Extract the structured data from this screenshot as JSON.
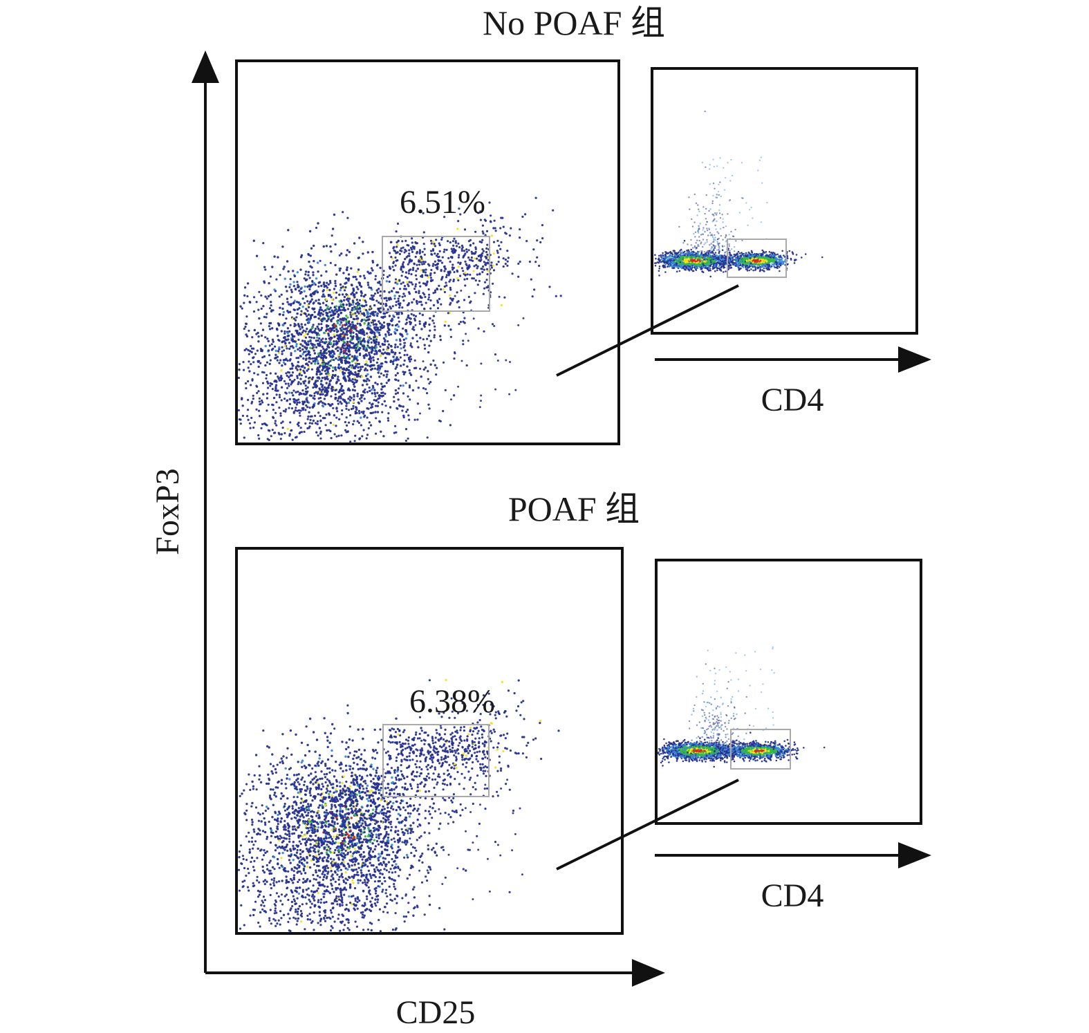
{
  "figure": {
    "y_axis_label": "FoxP3",
    "x_axis_label": "CD25",
    "inset_axis_label": "CD4"
  },
  "colors": {
    "axis": "#111111",
    "gate": "#a9a9a9",
    "density_low": "#27318f",
    "density_mid": "#3a8ad6",
    "density_mid_high": "#35b84a",
    "density_high": "#f2e21c",
    "density_peak": "#e0251b"
  },
  "chart_data": [
    {
      "type": "scatter",
      "panel": "top-main",
      "title": "No POAF 组",
      "xlabel": "CD25",
      "ylabel": "FoxP3",
      "gate_label": "6.51%",
      "gate_percent": 6.51,
      "xlim": [
        0,
        100
      ],
      "ylim": [
        0,
        100
      ],
      "population_center": [
        27,
        28
      ],
      "gate_range": {
        "x": [
          38,
          66
        ],
        "y": [
          35,
          55
        ]
      },
      "grid": false,
      "legend": "none"
    },
    {
      "type": "scatter",
      "panel": "top-inset",
      "xlabel": "CD4",
      "xlim": [
        0,
        100
      ],
      "ylim": [
        0,
        100
      ],
      "populations": [
        {
          "name": "",
          "center": [
            16,
            28
          ]
        },
        {
          "name": "",
          "center": [
            40,
            27
          ]
        }
      ],
      "gate_range": {
        "x": [
          29,
          51
        ],
        "y": [
          21,
          36
        ]
      },
      "grid": false,
      "legend": "none"
    },
    {
      "type": "scatter",
      "panel": "bottom-main",
      "title": "POAF 组",
      "xlabel": "CD25",
      "ylabel": "FoxP3",
      "gate_label": "6.38%",
      "gate_percent": 6.38,
      "xlim": [
        0,
        100
      ],
      "ylim": [
        0,
        100
      ],
      "population_center": [
        27,
        28
      ],
      "gate_range": {
        "x": [
          38,
          66
        ],
        "y": [
          35,
          55
        ]
      },
      "grid": false,
      "legend": "none"
    },
    {
      "type": "scatter",
      "panel": "bottom-inset",
      "xlabel": "CD4",
      "xlim": [
        0,
        100
      ],
      "ylim": [
        0,
        100
      ],
      "populations": [
        {
          "name": "",
          "center": [
            17,
            28
          ]
        },
        {
          "name": "",
          "center": [
            39,
            27
          ]
        }
      ],
      "gate_range": {
        "x": [
          29,
          51
        ],
        "y": [
          21,
          36
        ]
      },
      "grid": false,
      "legend": "none"
    }
  ]
}
